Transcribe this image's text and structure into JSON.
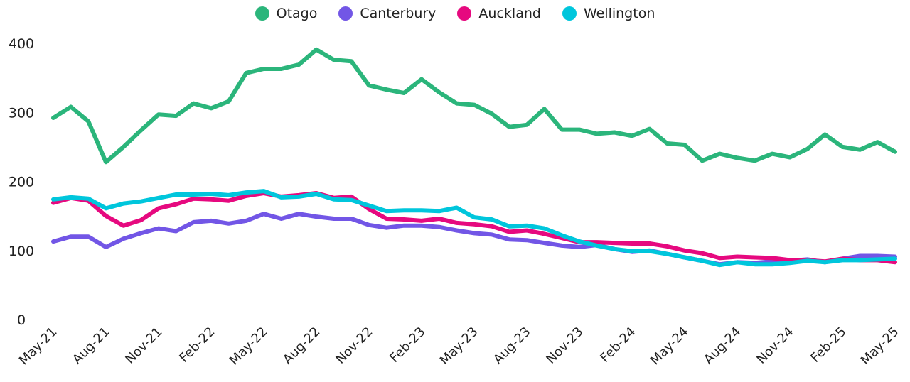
{
  "chart_data": {
    "type": "line",
    "title": "",
    "xlabel": "",
    "ylabel": "",
    "ylim": [
      0,
      400
    ],
    "yticks": [
      0,
      100,
      200,
      300,
      400
    ],
    "grid": false,
    "legend_position": "top-center",
    "x": [
      "May-21",
      "Jun-21",
      "Jul-21",
      "Aug-21",
      "Sep-21",
      "Oct-21",
      "Nov-21",
      "Dec-21",
      "Jan-22",
      "Feb-22",
      "Mar-22",
      "Apr-22",
      "May-22",
      "Jun-22",
      "Jul-22",
      "Aug-22",
      "Sep-22",
      "Oct-22",
      "Nov-22",
      "Dec-22",
      "Jan-23",
      "Feb-23",
      "Mar-23",
      "Apr-23",
      "May-23",
      "Jun-23",
      "Jul-23",
      "Aug-23",
      "Sep-23",
      "Oct-23",
      "Nov-23",
      "Dec-23",
      "Jan-24",
      "Feb-24",
      "Mar-24",
      "Apr-24",
      "May-24",
      "Jun-24",
      "Jul-24",
      "Aug-24",
      "Sep-24",
      "Oct-24",
      "Nov-24",
      "Dec-24",
      "Jan-25",
      "Feb-25",
      "Mar-25",
      "Apr-25",
      "May-25"
    ],
    "xtick_labels": [
      "May-21",
      "Aug-21",
      "Nov-21",
      "Feb-22",
      "May-22",
      "Aug-22",
      "Nov-22",
      "Feb-23",
      "May-23",
      "Aug-23",
      "Nov-23",
      "Feb-24",
      "May-24",
      "Aug-24",
      "Nov-24",
      "Feb-25",
      "May-25"
    ],
    "series": [
      {
        "name": "Otago",
        "color": "#2bb57b",
        "values": [
          292,
          308,
          287,
          228,
          250,
          274,
          297,
          295,
          313,
          306,
          316,
          357,
          363,
          363,
          369,
          391,
          376,
          374,
          339,
          333,
          328,
          348,
          329,
          313,
          311,
          298,
          279,
          282,
          305,
          275,
          275,
          269,
          271,
          266,
          276,
          255,
          253,
          230,
          240,
          234,
          230,
          240,
          235,
          247,
          268,
          250,
          246,
          257,
          243
        ]
      },
      {
        "name": "Canterbury",
        "color": "#7256e6",
        "values": [
          113,
          120,
          120,
          105,
          117,
          125,
          132,
          128,
          141,
          143,
          139,
          143,
          153,
          146,
          153,
          149,
          146,
          146,
          137,
          133,
          136,
          136,
          134,
          129,
          125,
          123,
          116,
          115,
          111,
          107,
          105,
          108,
          102,
          98,
          100,
          95,
          90,
          85,
          80,
          83,
          82,
          84,
          85,
          87,
          83,
          88,
          92,
          92,
          91
        ]
      },
      {
        "name": "Auckland",
        "color": "#e6097f",
        "values": [
          169,
          176,
          172,
          150,
          136,
          144,
          161,
          167,
          175,
          174,
          172,
          179,
          183,
          178,
          180,
          183,
          176,
          178,
          160,
          146,
          145,
          143,
          146,
          140,
          138,
          135,
          127,
          129,
          124,
          118,
          112,
          112,
          111,
          110,
          110,
          106,
          100,
          96,
          89,
          91,
          90,
          89,
          86,
          86,
          84,
          88,
          86,
          86,
          83
        ]
      },
      {
        "name": "Wellington",
        "color": "#00c6dc",
        "values": [
          174,
          177,
          175,
          161,
          168,
          171,
          176,
          181,
          181,
          182,
          180,
          184,
          186,
          177,
          178,
          182,
          174,
          173,
          165,
          157,
          158,
          158,
          157,
          162,
          148,
          145,
          135,
          136,
          132,
          122,
          113,
          107,
          102,
          99,
          99,
          95,
          90,
          85,
          79,
          83,
          80,
          80,
          82,
          85,
          83,
          86,
          86,
          87,
          88
        ]
      }
    ]
  }
}
